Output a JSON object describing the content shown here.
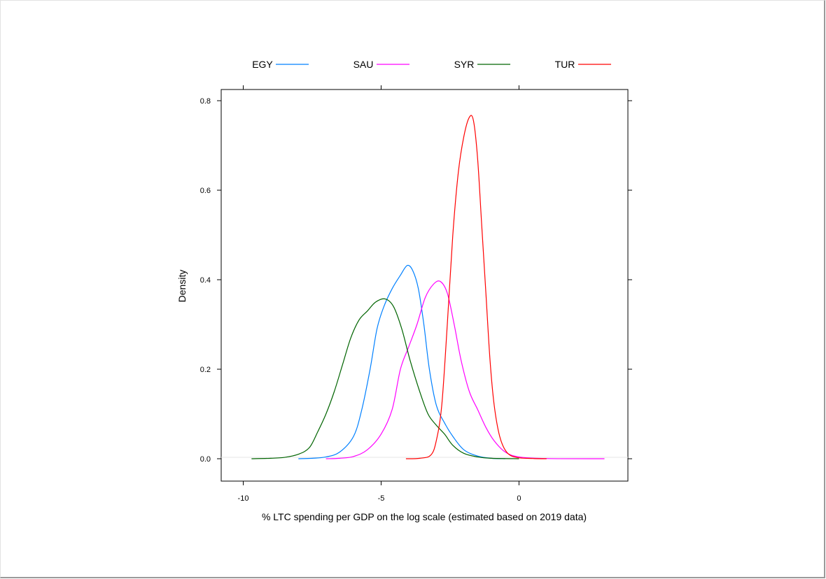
{
  "chart_data": {
    "type": "line",
    "title": "",
    "xlabel": "% LTC spending per GDP on the log scale (estimated based on 2019 data)",
    "ylabel": "Density",
    "xlim": [
      -10.8,
      3.95
    ],
    "ylim": [
      -0.05,
      0.825
    ],
    "x_ticks": [
      -10,
      -5,
      0
    ],
    "x_tick_labels": [
      "-10",
      "-5",
      "0"
    ],
    "y_ticks": [
      0.0,
      0.2,
      0.4,
      0.6,
      0.8
    ],
    "y_tick_labels": [
      "0.0",
      "0.2",
      "0.4",
      "0.6",
      "0.8"
    ],
    "grid": false,
    "baseline": 0,
    "legend": {
      "placement": "top",
      "orientation": "horizontal"
    },
    "series": [
      {
        "name": "EGY",
        "color": "#0080ff",
        "points": [
          [
            -8.0,
            0.0
          ],
          [
            -7.5,
            0.001
          ],
          [
            -7.0,
            0.004
          ],
          [
            -6.5,
            0.015
          ],
          [
            -6.0,
            0.05
          ],
          [
            -5.7,
            0.11
          ],
          [
            -5.4,
            0.2
          ],
          [
            -5.15,
            0.29
          ],
          [
            -4.9,
            0.34
          ],
          [
            -4.6,
            0.38
          ],
          [
            -4.3,
            0.41
          ],
          [
            -4.05,
            0.432
          ],
          [
            -3.85,
            0.42
          ],
          [
            -3.65,
            0.38
          ],
          [
            -3.45,
            0.3
          ],
          [
            -3.25,
            0.2
          ],
          [
            -3.0,
            0.12
          ],
          [
            -2.7,
            0.08
          ],
          [
            -2.4,
            0.05
          ],
          [
            -2.0,
            0.02
          ],
          [
            -1.5,
            0.006
          ],
          [
            -1.0,
            0.001
          ],
          [
            -0.5,
            0.0
          ]
        ]
      },
      {
        "name": "SAU",
        "color": "#ff00ff",
        "points": [
          [
            -7.0,
            0.0
          ],
          [
            -6.5,
            0.001
          ],
          [
            -6.0,
            0.005
          ],
          [
            -5.5,
            0.02
          ],
          [
            -5.0,
            0.055
          ],
          [
            -4.6,
            0.11
          ],
          [
            -4.3,
            0.2
          ],
          [
            -4.0,
            0.25
          ],
          [
            -3.7,
            0.3
          ],
          [
            -3.4,
            0.36
          ],
          [
            -3.1,
            0.39
          ],
          [
            -2.85,
            0.396
          ],
          [
            -2.6,
            0.37
          ],
          [
            -2.35,
            0.3
          ],
          [
            -2.1,
            0.22
          ],
          [
            -1.8,
            0.15
          ],
          [
            -1.5,
            0.11
          ],
          [
            -1.2,
            0.07
          ],
          [
            -0.9,
            0.04
          ],
          [
            -0.5,
            0.015
          ],
          [
            0.0,
            0.004
          ],
          [
            1.0,
            0.0005
          ],
          [
            3.1,
            0.0
          ]
        ]
      },
      {
        "name": "SYR",
        "color": "#006400",
        "points": [
          [
            -9.7,
            0.0
          ],
          [
            -9.0,
            0.001
          ],
          [
            -8.5,
            0.003
          ],
          [
            -8.0,
            0.01
          ],
          [
            -7.6,
            0.025
          ],
          [
            -7.3,
            0.06
          ],
          [
            -7.0,
            0.1
          ],
          [
            -6.7,
            0.15
          ],
          [
            -6.4,
            0.21
          ],
          [
            -6.1,
            0.27
          ],
          [
            -5.8,
            0.31
          ],
          [
            -5.5,
            0.33
          ],
          [
            -5.2,
            0.35
          ],
          [
            -4.85,
            0.357
          ],
          [
            -4.55,
            0.34
          ],
          [
            -4.25,
            0.29
          ],
          [
            -3.95,
            0.22
          ],
          [
            -3.6,
            0.15
          ],
          [
            -3.3,
            0.1
          ],
          [
            -3.0,
            0.075
          ],
          [
            -2.7,
            0.055
          ],
          [
            -2.4,
            0.03
          ],
          [
            -2.0,
            0.012
          ],
          [
            -1.5,
            0.004
          ],
          [
            -1.0,
            0.001
          ],
          [
            0.0,
            0.0
          ]
        ]
      },
      {
        "name": "TUR",
        "color": "#ff0000",
        "points": [
          [
            -4.1,
            0.0
          ],
          [
            -3.6,
            0.001
          ],
          [
            -3.2,
            0.008
          ],
          [
            -3.0,
            0.04
          ],
          [
            -2.8,
            0.12
          ],
          [
            -2.6,
            0.3
          ],
          [
            -2.4,
            0.5
          ],
          [
            -2.2,
            0.64
          ],
          [
            -2.0,
            0.72
          ],
          [
            -1.8,
            0.763
          ],
          [
            -1.65,
            0.755
          ],
          [
            -1.5,
            0.67
          ],
          [
            -1.35,
            0.52
          ],
          [
            -1.2,
            0.37
          ],
          [
            -1.05,
            0.22
          ],
          [
            -0.9,
            0.12
          ],
          [
            -0.7,
            0.05
          ],
          [
            -0.45,
            0.015
          ],
          [
            -0.1,
            0.003
          ],
          [
            0.5,
            0.0005
          ],
          [
            1.0,
            0.0
          ]
        ]
      }
    ]
  }
}
